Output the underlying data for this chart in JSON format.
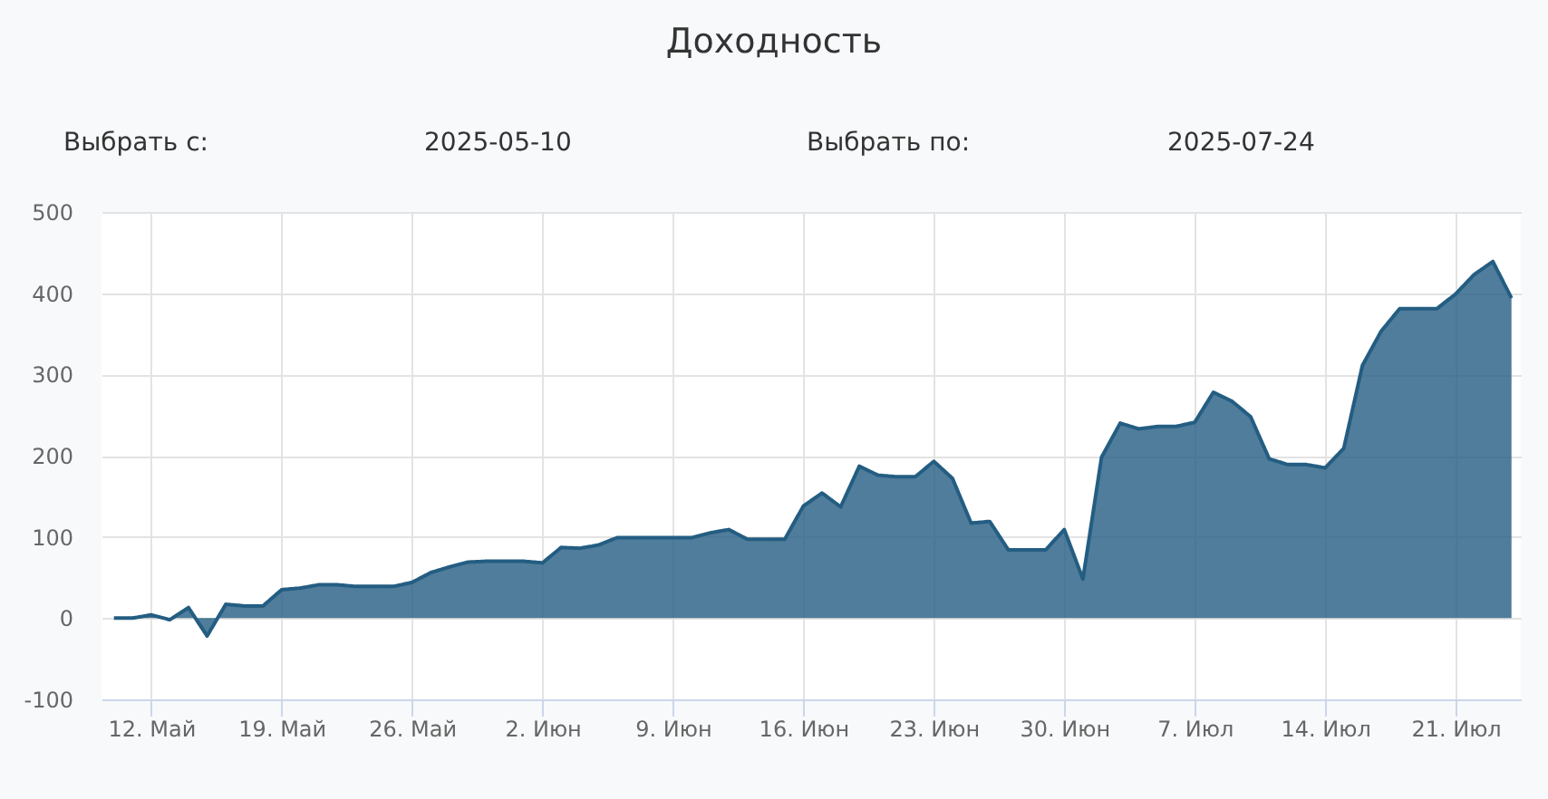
{
  "chart_data": {
    "type": "area",
    "title": "Доходность",
    "annotations": [
      "Выбрать с:",
      "2025-05-10",
      "Выбрать по:",
      "2025-07-24"
    ],
    "x": [
      "2025-05-10",
      "2025-05-11",
      "2025-05-12",
      "2025-05-13",
      "2025-05-14",
      "2025-05-15",
      "2025-05-16",
      "2025-05-17",
      "2025-05-18",
      "2025-05-19",
      "2025-05-20",
      "2025-05-21",
      "2025-05-22",
      "2025-05-23",
      "2025-05-24",
      "2025-05-25",
      "2025-05-26",
      "2025-05-27",
      "2025-05-28",
      "2025-05-29",
      "2025-05-30",
      "2025-05-31",
      "2025-06-01",
      "2025-06-02",
      "2025-06-03",
      "2025-06-04",
      "2025-06-05",
      "2025-06-06",
      "2025-06-07",
      "2025-06-08",
      "2025-06-09",
      "2025-06-10",
      "2025-06-11",
      "2025-06-12",
      "2025-06-13",
      "2025-06-14",
      "2025-06-15",
      "2025-06-16",
      "2025-06-17",
      "2025-06-18",
      "2025-06-19",
      "2025-06-20",
      "2025-06-21",
      "2025-06-22",
      "2025-06-23",
      "2025-06-24",
      "2025-06-25",
      "2025-06-26",
      "2025-06-27",
      "2025-06-28",
      "2025-06-29",
      "2025-06-30",
      "2025-07-01",
      "2025-07-02",
      "2025-07-03",
      "2025-07-04",
      "2025-07-05",
      "2025-07-06",
      "2025-07-07",
      "2025-07-08",
      "2025-07-09",
      "2025-07-10",
      "2025-07-11",
      "2025-07-12",
      "2025-07-13",
      "2025-07-14",
      "2025-07-15",
      "2025-07-16",
      "2025-07-17",
      "2025-07-18",
      "2025-07-19",
      "2025-07-20",
      "2025-07-21",
      "2025-07-22",
      "2025-07-23",
      "2025-07-24"
    ],
    "series": [
      {
        "color": "#245d82",
        "values": [
          0,
          0,
          4,
          -2,
          13,
          -22,
          17,
          15,
          15,
          35,
          37,
          41,
          41,
          39,
          39,
          39,
          44,
          56,
          63,
          69,
          70,
          70,
          70,
          68,
          87,
          86,
          90,
          99,
          99,
          99,
          99,
          99,
          105,
          109,
          97,
          97,
          97,
          138,
          154,
          137,
          187,
          176,
          174,
          174,
          193,
          172,
          117,
          119,
          84,
          84,
          84,
          109,
          48,
          198,
          240,
          233,
          236,
          236,
          241,
          278,
          267,
          248,
          196,
          189,
          189,
          185,
          209,
          311,
          353,
          381,
          381,
          381,
          399,
          423,
          439,
          394
        ]
      }
    ],
    "xlim": [
      "2025-05-09T08:00",
      "2025-07-24T12:00"
    ],
    "xticks": [
      {
        "value": "2025-05-12",
        "label": "12. Май"
      },
      {
        "value": "2025-05-19",
        "label": "19. Май"
      },
      {
        "value": "2025-05-26",
        "label": "26. Май"
      },
      {
        "value": "2025-06-02",
        "label": "2. Июн"
      },
      {
        "value": "2025-06-09",
        "label": "9. Июн"
      },
      {
        "value": "2025-06-16",
        "label": "16. Июн"
      },
      {
        "value": "2025-06-23",
        "label": "23. Июн"
      },
      {
        "value": "2025-06-30",
        "label": "30. Июн"
      },
      {
        "value": "2025-07-07",
        "label": "7. Июл"
      },
      {
        "value": "2025-07-14",
        "label": "14. Июл"
      },
      {
        "value": "2025-07-21",
        "label": "21. Июл"
      }
    ],
    "ylim": [
      -100,
      500
    ],
    "yticks": [
      -100,
      0,
      100,
      200,
      300,
      400,
      500
    ],
    "grid": true
  }
}
